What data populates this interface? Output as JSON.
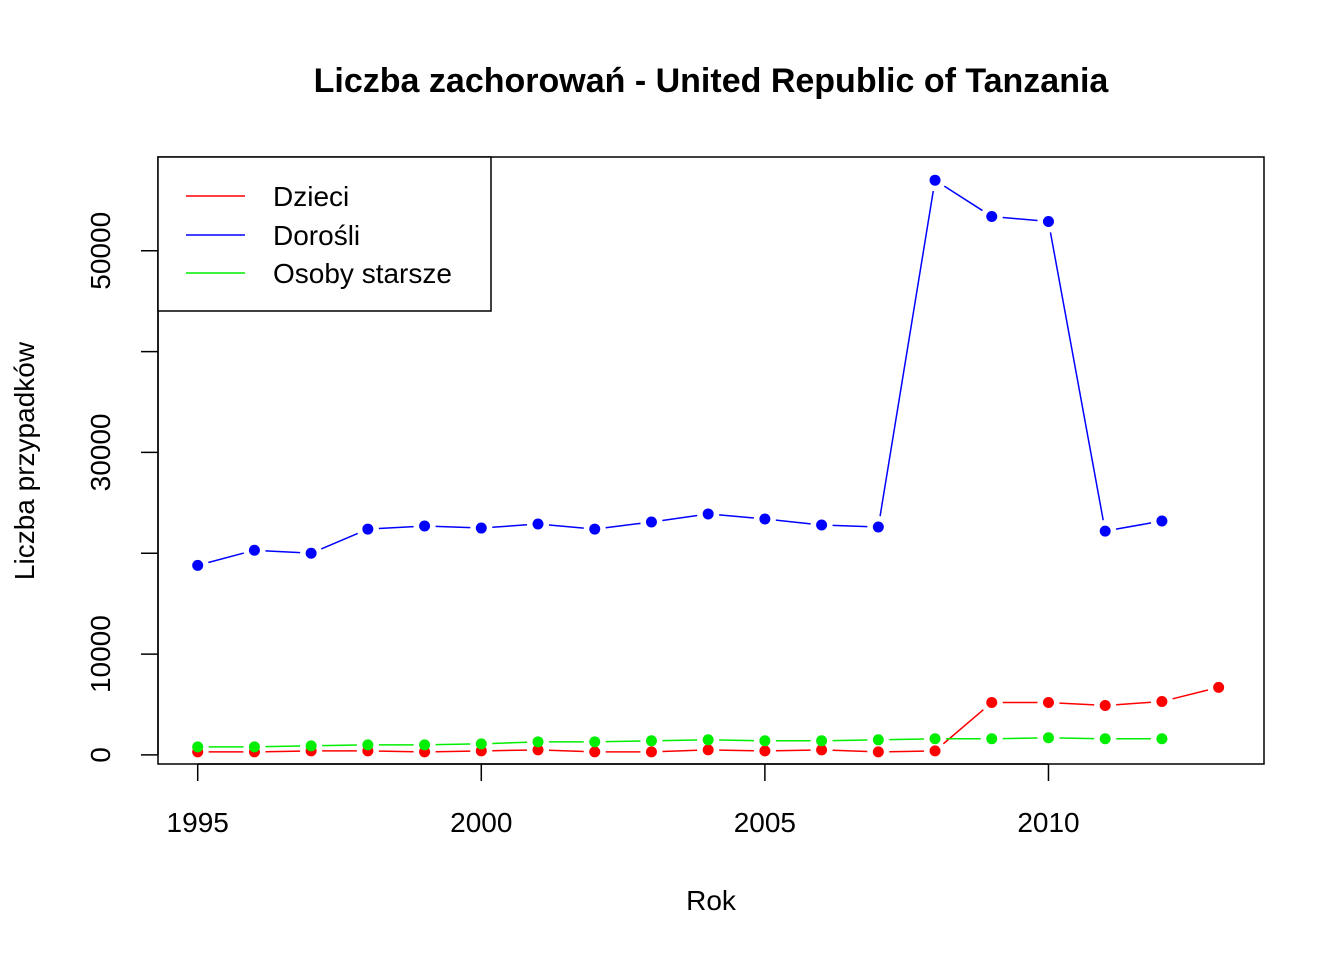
{
  "chart_data": {
    "type": "line",
    "title": "Liczba zachorowań -  United Republic of Tanzania",
    "xlabel": "Rok",
    "ylabel": "Liczba przypadków",
    "xlim": [
      1994.3,
      2013.8
    ],
    "ylim": [
      -900,
      59300
    ],
    "x_ticks": [
      1995,
      2000,
      2005,
      2010
    ],
    "x_tick_labels": [
      "1995",
      "2000",
      "2005",
      "2010"
    ],
    "y_ticks": [
      0,
      10000,
      20000,
      30000,
      40000,
      50000
    ],
    "y_tick_labels": [
      "0",
      "10000",
      "",
      "30000",
      "",
      "50000"
    ],
    "legend_position": "top-left",
    "series": [
      {
        "name": "Dzieci",
        "color": "#ff0000",
        "x": [
          1995,
          1996,
          1997,
          1998,
          1999,
          2000,
          2001,
          2002,
          2003,
          2004,
          2005,
          2006,
          2007,
          2008,
          2009,
          2010,
          2011,
          2012,
          2013
        ],
        "y": [
          300,
          300,
          400,
          400,
          300,
          400,
          500,
          300,
          300,
          500,
          400,
          500,
          300,
          400,
          5200,
          5200,
          4900,
          5300,
          6700
        ]
      },
      {
        "name": "Dorośli",
        "color": "#0000ff",
        "x": [
          1995,
          1996,
          1997,
          1998,
          1999,
          2000,
          2001,
          2002,
          2003,
          2004,
          2005,
          2006,
          2007,
          2008,
          2009,
          2010,
          2011,
          2012
        ],
        "y": [
          18800,
          20300,
          20000,
          22400,
          22700,
          22500,
          22900,
          22400,
          23100,
          23900,
          23400,
          22800,
          22600,
          57000,
          53400,
          52900,
          22200,
          23200
        ]
      },
      {
        "name": "Osoby starsze",
        "color": "#00ee00",
        "x": [
          1995,
          1996,
          1997,
          1998,
          1999,
          2000,
          2001,
          2002,
          2003,
          2004,
          2005,
          2006,
          2007,
          2008,
          2009,
          2010,
          2011,
          2012
        ],
        "y": [
          800,
          800,
          900,
          1000,
          1000,
          1100,
          1300,
          1300,
          1400,
          1500,
          1400,
          1400,
          1500,
          1600,
          1600,
          1700,
          1600,
          1600
        ]
      }
    ]
  }
}
